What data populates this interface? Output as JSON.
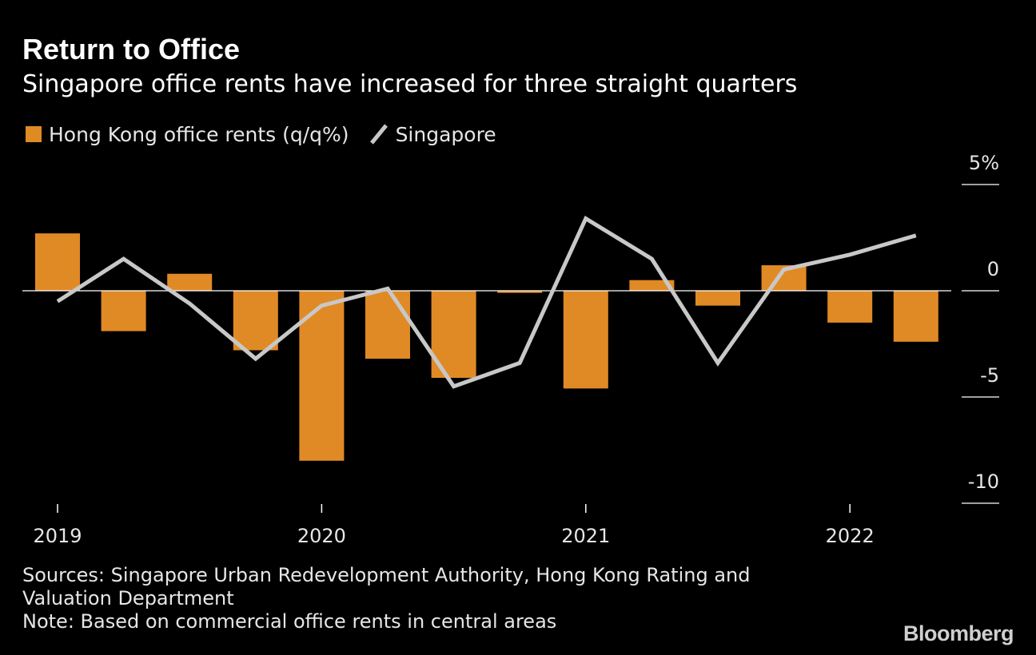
{
  "title": "Return to Office",
  "subtitle": "Singapore office rents have increased for three straight quarters",
  "legend": {
    "hk_label": "Hong Kong office rents (q/q%)",
    "sg_label": "Singapore"
  },
  "colors": {
    "hk": "#e08a26",
    "sg": "#c8c8c8",
    "axis": "#ffffff",
    "background": "#000000"
  },
  "footer": {
    "sources_line1": "Sources: Singapore Urban Redevelopment Authority, Hong Kong Rating and",
    "sources_line2": "Valuation Department",
    "note": "Note: Based on commercial office rents in central areas"
  },
  "brand": "Bloomberg",
  "chart_data": {
    "type": "bar",
    "title": "Return to Office",
    "subtitle": "Singapore office rents have increased for three straight quarters",
    "xlabel": "",
    "ylabel": "",
    "ylim": [
      -10,
      5
    ],
    "legend_position": "top-left",
    "grid": false,
    "categories": [
      "2019 Q1",
      "2019 Q2",
      "2019 Q3",
      "2019 Q4",
      "2020 Q1",
      "2020 Q2",
      "2020 Q3",
      "2020 Q4",
      "2021 Q1",
      "2021 Q2",
      "2021 Q3",
      "2021 Q4",
      "2022 Q1",
      "2022 Q2"
    ],
    "series": [
      {
        "name": "Hong Kong office rents (q/q%)",
        "type": "bar",
        "values": [
          2.7,
          -1.9,
          0.8,
          -2.8,
          -8.0,
          -3.2,
          -4.1,
          -0.1,
          -4.6,
          0.5,
          -0.7,
          1.2,
          -1.5,
          -2.4
        ]
      },
      {
        "name": "Singapore",
        "type": "line",
        "values": [
          -0.5,
          1.5,
          -0.6,
          -3.2,
          -0.7,
          0.1,
          -4.5,
          -3.4,
          3.4,
          1.5,
          -3.4,
          1.0,
          1.7,
          2.6
        ]
      }
    ],
    "y_ticks": [
      {
        "value": 5,
        "label": "5%"
      },
      {
        "value": 0,
        "label": "0"
      },
      {
        "value": -5,
        "label": "-5"
      },
      {
        "value": -10,
        "label": "-10"
      }
    ],
    "x_ticks": [
      {
        "index": 0,
        "label": "2019"
      },
      {
        "index": 4,
        "label": "2020"
      },
      {
        "index": 8,
        "label": "2021"
      },
      {
        "index": 12,
        "label": "2022"
      }
    ]
  }
}
